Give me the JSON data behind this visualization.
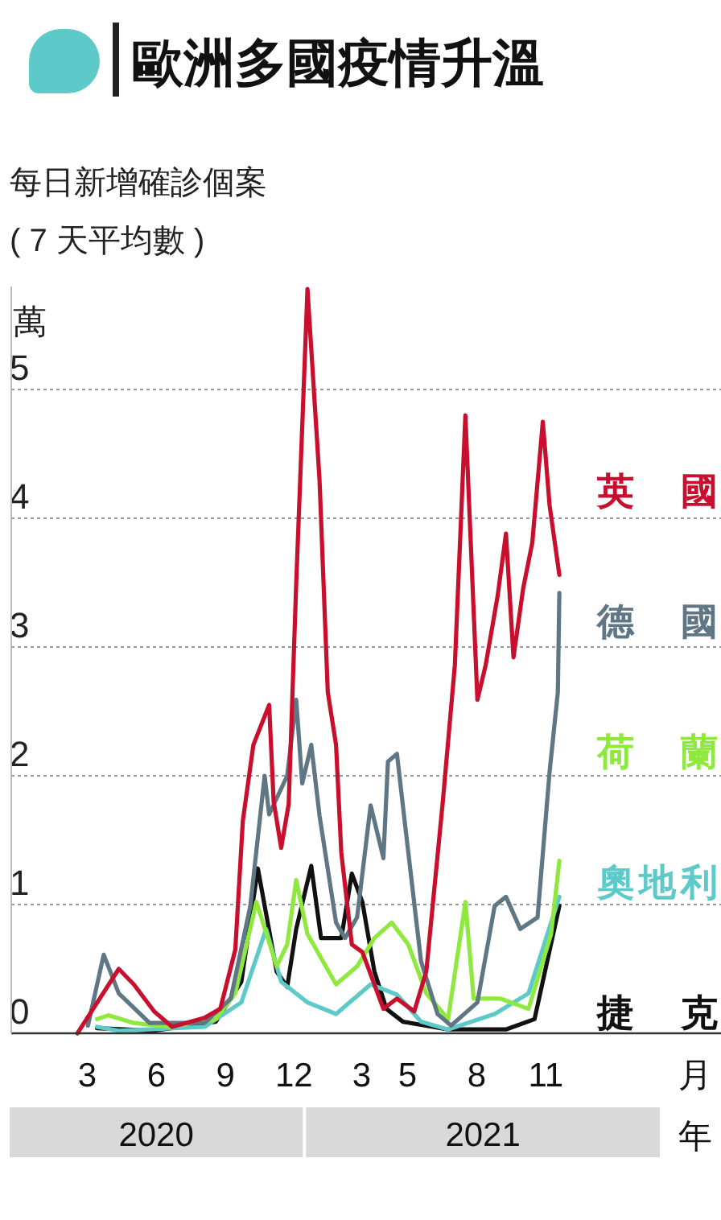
{
  "chart_data": {
    "type": "line",
    "title": "歐洲多國疫情升溫",
    "subtitle": "每日新增確診個案\n( 7 天平均數 )",
    "ylabel": "萬",
    "xlabel": "月",
    "annotations": [
      "2020",
      "2021",
      "年"
    ],
    "xlim": [
      "2019-12-06",
      "2022-07-07"
    ],
    "xticks": [
      {
        "value": "2020-03-16",
        "label": "3"
      },
      {
        "value": "2020-06-16",
        "label": "6"
      },
      {
        "value": "2020-09-16",
        "label": "9"
      },
      {
        "value": "2020-12-16",
        "label": "12"
      },
      {
        "value": "2021-03-16",
        "label": "3"
      },
      {
        "value": "2021-05-16",
        "label": "5"
      },
      {
        "value": "2021-08-16",
        "label": "8"
      },
      {
        "value": "2021-11-16",
        "label": "11"
      }
    ],
    "ylim": [
      0,
      5.8
    ],
    "yticks": [
      0,
      1,
      2,
      3,
      4,
      5
    ],
    "grid": "y",
    "legend": "right",
    "marker": "none",
    "line_style": "solid",
    "series": [
      {
        "name": "英國",
        "color": "#c8102e",
        "x": [
          "2020-03-03",
          "2020-04-27",
          "2020-05-17",
          "2020-06-13",
          "2020-07-07",
          "2020-08-19",
          "2020-09-09",
          "2020-09-29",
          "2020-10-09",
          "2020-10-23",
          "2020-11-13",
          "2020-11-19",
          "2020-11-29",
          "2020-12-09",
          "2020-12-19",
          "2021-01-03",
          "2021-01-19",
          "2021-01-30",
          "2021-02-10",
          "2021-02-17",
          "2021-03-03",
          "2021-03-17",
          "2021-04-14",
          "2021-05-02",
          "2021-05-25",
          "2021-06-10",
          "2021-07-02",
          "2021-07-18",
          "2021-08-01",
          "2021-08-17",
          "2021-08-28",
          "2021-09-13",
          "2021-09-24",
          "2021-10-04",
          "2021-10-17",
          "2021-10-29",
          "2021-11-12",
          "2021-11-21",
          "2021-12-04"
        ],
        "values": [
          0,
          0.5,
          0.38,
          0.17,
          0.05,
          0.12,
          0.19,
          0.65,
          1.65,
          2.24,
          2.55,
          1.8,
          1.44,
          1.78,
          3.49,
          5.78,
          4.3,
          2.65,
          2.24,
          1.4,
          0.69,
          0.63,
          0.19,
          0.27,
          0.17,
          0.48,
          1.8,
          2.86,
          4.8,
          2.59,
          2.86,
          3.4,
          3.88,
          2.92,
          3.46,
          3.81,
          4.75,
          4.1,
          3.56
        ]
      },
      {
        "name": "德國",
        "color": "#5f7784",
        "x": [
          "2020-03-17",
          "2020-04-07",
          "2020-04-27",
          "2020-06-07",
          "2020-08-19",
          "2020-09-23",
          "2020-10-19",
          "2020-11-07",
          "2020-11-13",
          "2020-12-07",
          "2020-12-19",
          "2020-12-27",
          "2021-01-08",
          "2021-01-19",
          "2021-02-10",
          "2021-02-22",
          "2021-03-10",
          "2021-03-28",
          "2021-04-14",
          "2021-04-20",
          "2021-05-02",
          "2021-05-13",
          "2021-06-03",
          "2021-06-25",
          "2021-07-13",
          "2021-08-17",
          "2021-09-09",
          "2021-09-24",
          "2021-10-13",
          "2021-11-05",
          "2021-11-21",
          "2021-12-02",
          "2021-12-04"
        ],
        "values": [
          0.06,
          0.61,
          0.31,
          0.08,
          0.08,
          0.27,
          0.99,
          2.0,
          1.7,
          2.0,
          2.59,
          1.94,
          2.24,
          1.69,
          0.86,
          0.74,
          0.9,
          1.77,
          1.36,
          2.11,
          2.17,
          1.61,
          0.56,
          0.15,
          0.06,
          0.24,
          0.99,
          1.06,
          0.81,
          0.9,
          2.03,
          2.65,
          3.42
        ]
      },
      {
        "name": "荷蘭",
        "color": "#8fe83e",
        "x": [
          "2020-03-29",
          "2020-04-13",
          "2020-05-17",
          "2020-07-03",
          "2020-09-03",
          "2020-09-29",
          "2020-10-27",
          "2020-11-23",
          "2020-12-07",
          "2020-12-19",
          "2021-01-03",
          "2021-02-10",
          "2021-03-10",
          "2021-04-02",
          "2021-04-25",
          "2021-05-17",
          "2021-06-10",
          "2021-07-09",
          "2021-08-01",
          "2021-08-12",
          "2021-09-16",
          "2021-10-24",
          "2021-11-23",
          "2021-12-04"
        ],
        "values": [
          0.11,
          0.14,
          0.08,
          0.05,
          0.11,
          0.31,
          1.02,
          0.52,
          0.69,
          1.19,
          0.77,
          0.38,
          0.52,
          0.74,
          0.86,
          0.69,
          0.31,
          0.11,
          1.02,
          0.27,
          0.27,
          0.19,
          0.77,
          1.34
        ]
      },
      {
        "name": "奧地利",
        "color": "#5ec9c9",
        "x": [
          "2020-03-29",
          "2020-04-27",
          "2020-08-19",
          "2020-10-07",
          "2020-11-09",
          "2020-11-29",
          "2021-01-03",
          "2021-02-10",
          "2021-03-28",
          "2021-05-02",
          "2021-06-03",
          "2021-07-09",
          "2021-09-09",
          "2021-10-24",
          "2021-12-04"
        ],
        "values": [
          0.05,
          0.02,
          0.05,
          0.24,
          0.81,
          0.4,
          0.24,
          0.15,
          0.38,
          0.3,
          0.09,
          0.03,
          0.15,
          0.31,
          1.06
        ]
      },
      {
        "name": "捷克",
        "color": "#111111",
        "x": [
          "2020-03-29",
          "2020-06-13",
          "2020-09-03",
          "2020-10-07",
          "2020-10-29",
          "2020-11-23",
          "2020-12-07",
          "2020-12-19",
          "2021-01-08",
          "2021-01-21",
          "2021-02-17",
          "2021-03-03",
          "2021-03-17",
          "2021-04-02",
          "2021-04-18",
          "2021-05-10",
          "2021-07-09",
          "2021-09-24",
          "2021-11-01",
          "2021-12-04"
        ],
        "values": [
          0.04,
          0.02,
          0.09,
          0.4,
          1.28,
          0.48,
          0.36,
          0.81,
          1.3,
          0.74,
          0.74,
          1.24,
          1.02,
          0.48,
          0.19,
          0.09,
          0.03,
          0.03,
          0.11,
          0.99
        ]
      }
    ]
  }
}
